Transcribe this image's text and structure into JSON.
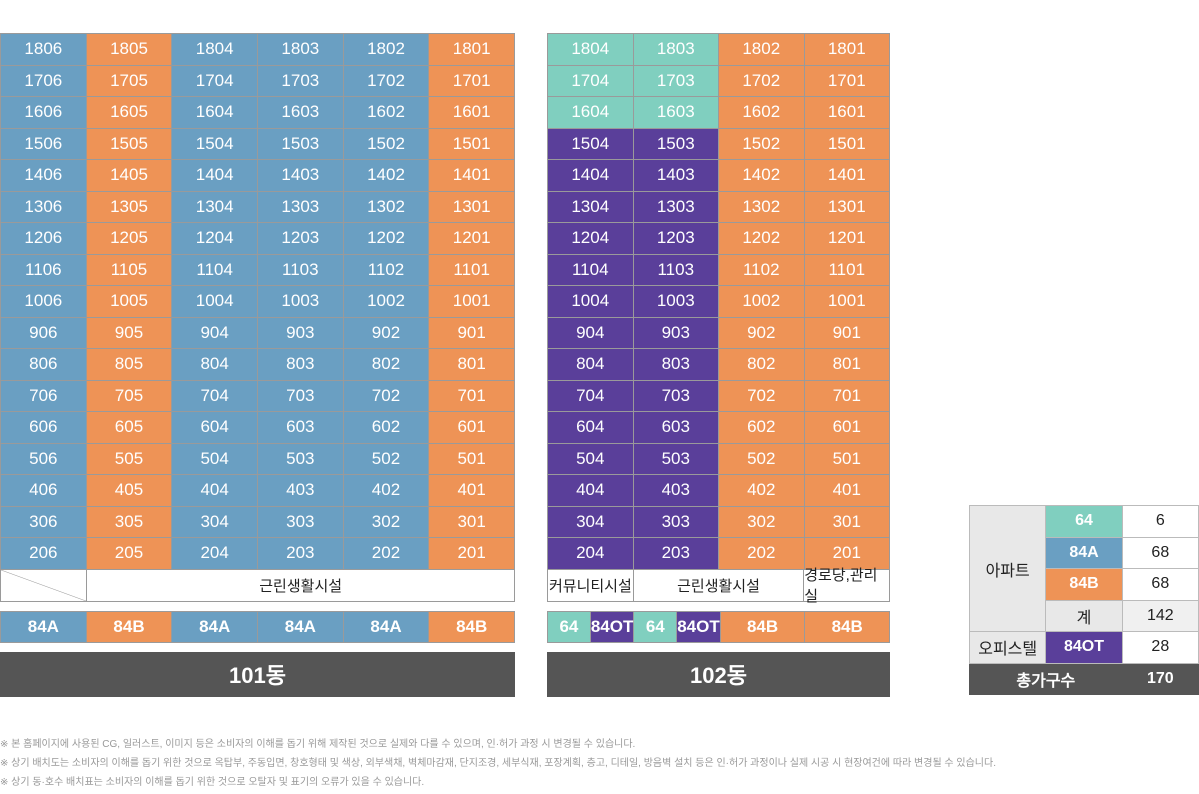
{
  "colors": {
    "64": "#80cfbf",
    "84A": "#6a9fc2",
    "84B": "#ee9356",
    "84OT": "#5a3f9a",
    "title_bg": "#555555"
  },
  "buildings": [
    {
      "title": "101동",
      "columns": 6,
      "rows": [
        {
          "units": [
            "1806",
            "1805",
            "1804",
            "1803",
            "1802",
            "1801"
          ],
          "types": [
            "84A",
            "84B",
            "84A",
            "84A",
            "84A",
            "84B"
          ]
        },
        {
          "units": [
            "1706",
            "1705",
            "1704",
            "1703",
            "1702",
            "1701"
          ],
          "types": [
            "84A",
            "84B",
            "84A",
            "84A",
            "84A",
            "84B"
          ]
        },
        {
          "units": [
            "1606",
            "1605",
            "1604",
            "1603",
            "1602",
            "1601"
          ],
          "types": [
            "84A",
            "84B",
            "84A",
            "84A",
            "84A",
            "84B"
          ]
        },
        {
          "units": [
            "1506",
            "1505",
            "1504",
            "1503",
            "1502",
            "1501"
          ],
          "types": [
            "84A",
            "84B",
            "84A",
            "84A",
            "84A",
            "84B"
          ]
        },
        {
          "units": [
            "1406",
            "1405",
            "1404",
            "1403",
            "1402",
            "1401"
          ],
          "types": [
            "84A",
            "84B",
            "84A",
            "84A",
            "84A",
            "84B"
          ]
        },
        {
          "units": [
            "1306",
            "1305",
            "1304",
            "1303",
            "1302",
            "1301"
          ],
          "types": [
            "84A",
            "84B",
            "84A",
            "84A",
            "84A",
            "84B"
          ]
        },
        {
          "units": [
            "1206",
            "1205",
            "1204",
            "1203",
            "1202",
            "1201"
          ],
          "types": [
            "84A",
            "84B",
            "84A",
            "84A",
            "84A",
            "84B"
          ]
        },
        {
          "units": [
            "1106",
            "1105",
            "1104",
            "1103",
            "1102",
            "1101"
          ],
          "types": [
            "84A",
            "84B",
            "84A",
            "84A",
            "84A",
            "84B"
          ]
        },
        {
          "units": [
            "1006",
            "1005",
            "1004",
            "1003",
            "1002",
            "1001"
          ],
          "types": [
            "84A",
            "84B",
            "84A",
            "84A",
            "84A",
            "84B"
          ]
        },
        {
          "units": [
            "906",
            "905",
            "904",
            "903",
            "902",
            "901"
          ],
          "types": [
            "84A",
            "84B",
            "84A",
            "84A",
            "84A",
            "84B"
          ]
        },
        {
          "units": [
            "806",
            "805",
            "804",
            "803",
            "802",
            "801"
          ],
          "types": [
            "84A",
            "84B",
            "84A",
            "84A",
            "84A",
            "84B"
          ]
        },
        {
          "units": [
            "706",
            "705",
            "704",
            "703",
            "702",
            "701"
          ],
          "types": [
            "84A",
            "84B",
            "84A",
            "84A",
            "84A",
            "84B"
          ]
        },
        {
          "units": [
            "606",
            "605",
            "604",
            "603",
            "602",
            "601"
          ],
          "types": [
            "84A",
            "84B",
            "84A",
            "84A",
            "84A",
            "84B"
          ]
        },
        {
          "units": [
            "506",
            "505",
            "504",
            "503",
            "502",
            "501"
          ],
          "types": [
            "84A",
            "84B",
            "84A",
            "84A",
            "84A",
            "84B"
          ]
        },
        {
          "units": [
            "406",
            "405",
            "404",
            "403",
            "402",
            "401"
          ],
          "types": [
            "84A",
            "84B",
            "84A",
            "84A",
            "84A",
            "84B"
          ]
        },
        {
          "units": [
            "306",
            "305",
            "304",
            "303",
            "302",
            "301"
          ],
          "types": [
            "84A",
            "84B",
            "84A",
            "84A",
            "84A",
            "84B"
          ]
        },
        {
          "units": [
            "206",
            "205",
            "204",
            "203",
            "202",
            "201"
          ],
          "types": [
            "84A",
            "84B",
            "84A",
            "84A",
            "84A",
            "84B"
          ]
        }
      ],
      "facilities": [
        {
          "label": "",
          "span": 1,
          "diag": true
        },
        {
          "label": "근린생활시설",
          "span": 5
        }
      ],
      "type_row": [
        {
          "label": "84A",
          "type": "84A",
          "span": 2
        },
        {
          "label": "84B",
          "type": "84B",
          "span": 2
        },
        {
          "label": "84A",
          "type": "84A",
          "span": 2
        },
        {
          "label": "84A",
          "type": "84A",
          "span": 2
        },
        {
          "label": "84A",
          "type": "84A",
          "span": 2
        },
        {
          "label": "84B",
          "type": "84B",
          "span": 2
        }
      ]
    },
    {
      "title": "102동",
      "columns": 4,
      "rows": [
        {
          "units": [
            "1804",
            "1803",
            "1802",
            "1801"
          ],
          "types": [
            "64",
            "64",
            "84B",
            "84B"
          ]
        },
        {
          "units": [
            "1704",
            "1703",
            "1702",
            "1701"
          ],
          "types": [
            "64",
            "64",
            "84B",
            "84B"
          ]
        },
        {
          "units": [
            "1604",
            "1603",
            "1602",
            "1601"
          ],
          "types": [
            "64",
            "64",
            "84B",
            "84B"
          ]
        },
        {
          "units": [
            "1504",
            "1503",
            "1502",
            "1501"
          ],
          "types": [
            "84OT",
            "84OT",
            "84B",
            "84B"
          ]
        },
        {
          "units": [
            "1404",
            "1403",
            "1402",
            "1401"
          ],
          "types": [
            "84OT",
            "84OT",
            "84B",
            "84B"
          ]
        },
        {
          "units": [
            "1304",
            "1303",
            "1302",
            "1301"
          ],
          "types": [
            "84OT",
            "84OT",
            "84B",
            "84B"
          ]
        },
        {
          "units": [
            "1204",
            "1203",
            "1202",
            "1201"
          ],
          "types": [
            "84OT",
            "84OT",
            "84B",
            "84B"
          ]
        },
        {
          "units": [
            "1104",
            "1103",
            "1102",
            "1101"
          ],
          "types": [
            "84OT",
            "84OT",
            "84B",
            "84B"
          ]
        },
        {
          "units": [
            "1004",
            "1003",
            "1002",
            "1001"
          ],
          "types": [
            "84OT",
            "84OT",
            "84B",
            "84B"
          ]
        },
        {
          "units": [
            "904",
            "903",
            "902",
            "901"
          ],
          "types": [
            "84OT",
            "84OT",
            "84B",
            "84B"
          ]
        },
        {
          "units": [
            "804",
            "803",
            "802",
            "801"
          ],
          "types": [
            "84OT",
            "84OT",
            "84B",
            "84B"
          ]
        },
        {
          "units": [
            "704",
            "703",
            "702",
            "701"
          ],
          "types": [
            "84OT",
            "84OT",
            "84B",
            "84B"
          ]
        },
        {
          "units": [
            "604",
            "603",
            "602",
            "601"
          ],
          "types": [
            "84OT",
            "84OT",
            "84B",
            "84B"
          ]
        },
        {
          "units": [
            "504",
            "503",
            "502",
            "501"
          ],
          "types": [
            "84OT",
            "84OT",
            "84B",
            "84B"
          ]
        },
        {
          "units": [
            "404",
            "403",
            "402",
            "401"
          ],
          "types": [
            "84OT",
            "84OT",
            "84B",
            "84B"
          ]
        },
        {
          "units": [
            "304",
            "303",
            "302",
            "301"
          ],
          "types": [
            "84OT",
            "84OT",
            "84B",
            "84B"
          ]
        },
        {
          "units": [
            "204",
            "203",
            "202",
            "201"
          ],
          "types": [
            "84OT",
            "84OT",
            "84B",
            "84B"
          ]
        }
      ],
      "facilities": [
        {
          "label": "커뮤니티시설",
          "span": 1
        },
        {
          "label": "근린생활시설",
          "span": 2
        },
        {
          "label": "경로당,관리실",
          "span": 1
        }
      ],
      "type_row": [
        {
          "label": "64",
          "type": "64",
          "span": 1
        },
        {
          "label": "84OT",
          "type": "84OT",
          "span": 1
        },
        {
          "label": "64",
          "type": "64",
          "span": 1
        },
        {
          "label": "84OT",
          "type": "84OT",
          "span": 1
        },
        {
          "label": "84B",
          "type": "84B",
          "span": 2
        },
        {
          "label": "84B",
          "type": "84B",
          "span": 2
        }
      ]
    }
  ],
  "legend": {
    "apt_label": "아파트",
    "apt_rows": [
      {
        "type": "64",
        "label": "64",
        "count": "6"
      },
      {
        "type": "84A",
        "label": "84A",
        "count": "68"
      },
      {
        "type": "84B",
        "label": "84B",
        "count": "68"
      }
    ],
    "subtotal_label": "계",
    "subtotal": "142",
    "office_label": "오피스텔",
    "office_type": "84OT",
    "office_count": "28",
    "total_label": "총가구수",
    "total": "170"
  },
  "notes": [
    "※ 본 홈페이지에 사용된 CG, 일러스트, 이미지 등은 소비자의 이해를 돕기 위해 제작된 것으로 실제와 다를 수 있으며, 인·허가 과정 시 변경될 수 있습니다.",
    "※ 상기 배치도는 소비자의 이해를 돕기 위한 것으로 옥탑부, 주동입면, 창호형태 및 색상, 외부색채, 벽체마감재, 단지조경, 세부식재, 포장계획, 층고, 디테일, 방음벽 설치 등은 인·허가 과정이나 실제 시공 시 현장여건에 따라 변경될 수 있습니다.",
    "※ 상기 동·호수 배치표는 소비자의 이해를 돕기 위한 것으로 오탈자 및 표기의 오류가 있을 수 있습니다."
  ]
}
